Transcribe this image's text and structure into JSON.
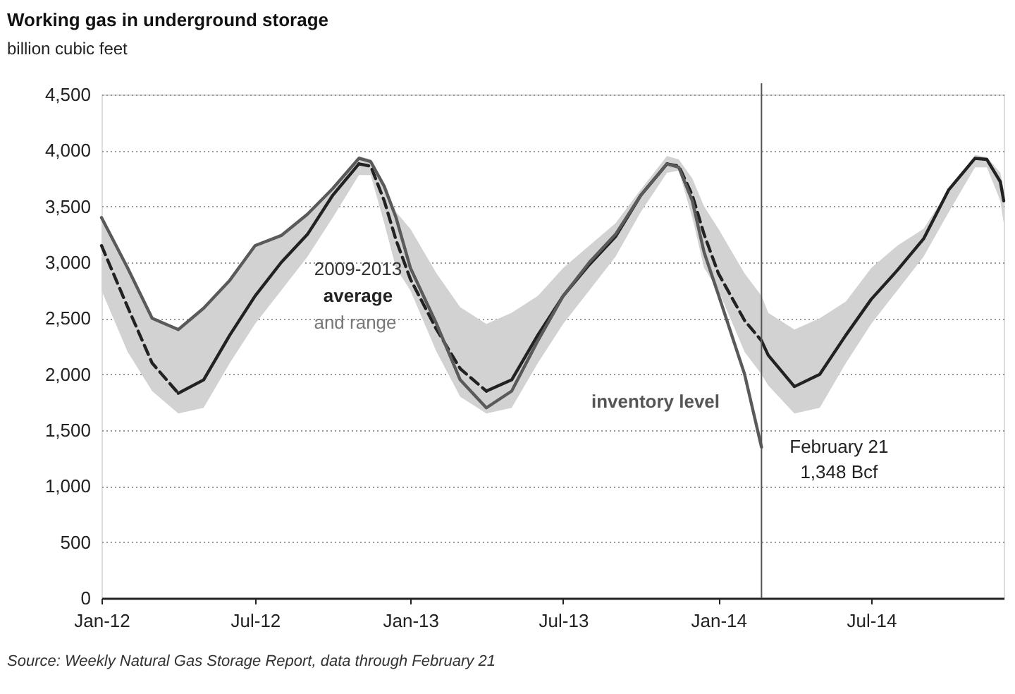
{
  "chart_data": {
    "type": "line",
    "title": "Working gas in underground storage",
    "subtitle": "billion cubic feet",
    "x": [
      "2012-01-01",
      "2012-02-01",
      "2012-03-01",
      "2012-04-01",
      "2012-05-01",
      "2012-06-01",
      "2012-07-01",
      "2012-08-01",
      "2012-09-01",
      "2012-10-01",
      "2012-11-01",
      "2012-11-15",
      "2012-12-01",
      "2012-12-15",
      "2013-01-01",
      "2013-02-01",
      "2013-03-01",
      "2013-04-01",
      "2013-05-01",
      "2013-06-01",
      "2013-07-01",
      "2013-08-01",
      "2013-09-01",
      "2013-10-01",
      "2013-11-01",
      "2013-11-15",
      "2013-12-01",
      "2013-12-15",
      "2014-01-01",
      "2014-02-01",
      "2014-02-21",
      "2014-03-01",
      "2014-04-01",
      "2014-05-01",
      "2014-06-01",
      "2014-07-01",
      "2014-08-01",
      "2014-09-01",
      "2014-10-01",
      "2014-11-01",
      "2014-11-15",
      "2014-12-01",
      "2014-12-05"
    ],
    "series": [
      {
        "line_style": "solid",
        "color": "#222222",
        "values": [
          null,
          null,
          null,
          1830,
          1950,
          2350,
          2700,
          3000,
          3250,
          3600,
          3880,
          null,
          null,
          null,
          null,
          null,
          null,
          1850,
          1950,
          2350,
          2700,
          2980,
          3230,
          3600,
          3880,
          null,
          null,
          null,
          null,
          null,
          2300,
          2170,
          1890,
          2000,
          2350,
          2670,
          2930,
          3210,
          3650,
          3930,
          3920,
          3720,
          3550
        ],
        "upper": [
          3400,
          2950,
          2500,
          2400,
          2590,
          2840,
          3150,
          3240,
          3430,
          3660,
          3950,
          3920,
          3700,
          3450,
          3300,
          2900,
          2600,
          2450,
          2550,
          2700,
          2950,
          3150,
          3350,
          3650,
          3950,
          3920,
          3750,
          3500,
          3300,
          2900,
          2700,
          2550,
          2400,
          2500,
          2650,
          2950,
          3150,
          3300,
          3650,
          3960,
          3940,
          3800,
          3650
        ],
        "lower": [
          2750,
          2200,
          1850,
          1650,
          1700,
          2100,
          2450,
          2750,
          3050,
          3400,
          3780,
          3780,
          3350,
          2950,
          2750,
          2200,
          1800,
          1650,
          1700,
          2100,
          2450,
          2750,
          3050,
          3450,
          3800,
          3820,
          3400,
          2950,
          2750,
          2200,
          2000,
          1900,
          1650,
          1700,
          2100,
          2450,
          2750,
          3050,
          3450,
          3850,
          3850,
          3550,
          3350
        ]
      },
      {
        "line_style": "dashed",
        "color": "#222222",
        "values": [
          3150,
          2600,
          2100,
          1830,
          null,
          null,
          null,
          null,
          null,
          null,
          3880,
          3860,
          3550,
          3200,
          2850,
          2400,
          2050,
          1850,
          null,
          null,
          null,
          null,
          null,
          null,
          3880,
          3860,
          3600,
          3250,
          2900,
          2480,
          2300,
          null,
          null,
          null,
          null,
          null,
          null,
          null,
          null,
          null,
          null,
          null,
          null
        ]
      },
      {
        "line_style": "solid",
        "color": "#5a5a5a",
        "x": [
          "2012-01-01",
          "2012-02-01",
          "2012-03-01",
          "2012-04-01",
          "2012-05-01",
          "2012-06-01",
          "2012-07-01",
          "2012-08-01",
          "2012-09-01",
          "2012-10-01",
          "2012-11-01",
          "2012-11-15",
          "2012-12-01",
          "2012-12-15",
          "2013-01-01",
          "2013-02-01",
          "2013-03-01",
          "2013-04-01",
          "2013-05-01",
          "2013-06-01",
          "2013-07-01",
          "2013-08-01",
          "2013-09-01",
          "2013-10-01",
          "2013-11-01",
          "2013-11-15",
          "2013-12-01",
          "2013-12-15",
          "2014-01-01",
          "2014-02-01",
          "2014-02-21"
        ],
        "values": [
          3400,
          2950,
          2500,
          2400,
          2590,
          2840,
          3150,
          3240,
          3430,
          3660,
          3930,
          3900,
          3680,
          3400,
          2950,
          2450,
          1950,
          1700,
          1850,
          2300,
          2700,
          3000,
          3250,
          3600,
          3880,
          3850,
          3550,
          3090,
          2710,
          2000,
          1348
        ]
      }
    ],
    "xlim": [
      "2012-01-01",
      "2014-12-05"
    ],
    "xticks": [
      {
        "value": "2012-01-01",
        "label": "Jan-12"
      },
      {
        "value": "2012-07-01",
        "label": "Jul-12"
      },
      {
        "value": "2013-01-01",
        "label": "Jan-13"
      },
      {
        "value": "2013-07-01",
        "label": "Jul-13"
      },
      {
        "value": "2014-01-01",
        "label": "Jan-14"
      },
      {
        "value": "2014-07-01",
        "label": "Jul-14"
      }
    ],
    "ylim": [
      0,
      4500
    ],
    "yticks": [
      0,
      500,
      {
        "value": 1000,
        "label": "1,000"
      },
      {
        "value": 1500,
        "label": "1,500"
      },
      {
        "value": 2000,
        "label": "2,000"
      },
      {
        "value": 2500,
        "label": "2,500"
      },
      {
        "value": 3000,
        "label": "3,000"
      },
      {
        "value": 3500,
        "label": "3,500"
      },
      {
        "value": 4000,
        "label": "4,000"
      },
      {
        "value": 4500,
        "label": "4,500"
      }
    ],
    "grid": "y",
    "ref_lines": [
      {
        "axis": "x",
        "value": "2014-02-21",
        "label": "February 21",
        "color": "#555555"
      }
    ],
    "annotations": [
      "2009-2013",
      "average",
      "and range",
      "inventory level",
      {
        "text": "1,348 Bcf",
        "x": "2014-02-21",
        "y": 1348
      },
      "Source: Weekly Natural Gas Storage Report, data through February 21"
    ]
  }
}
